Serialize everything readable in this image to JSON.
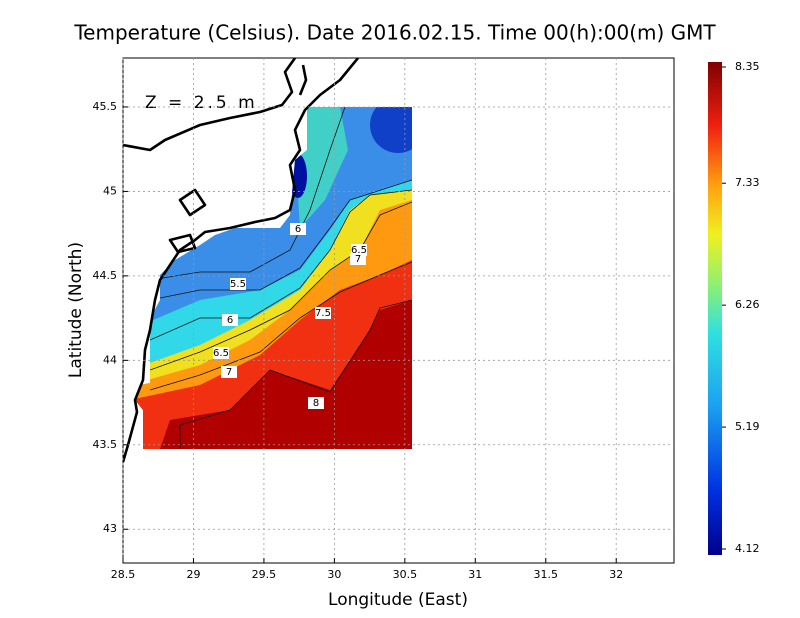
{
  "chart_data": {
    "type": "contour-map",
    "title": "Temperature (Celsius). Date 2016.02.15. Time 00(h):00(m) GMT",
    "annotation": "Z = 2.5 m",
    "xlabel": "Longitude (East)",
    "ylabel": "Latitude (North)",
    "xlim": [
      28.5,
      32.41
    ],
    "xticks": [
      28.5,
      29,
      29.5,
      30,
      30.5,
      31,
      31.5,
      32
    ],
    "ylim": [
      42.8,
      45.79
    ],
    "yticks": [
      43,
      43.5,
      44,
      44.5,
      45,
      45.5
    ],
    "grid": true,
    "colorbar": {
      "clim": [
        4.12,
        8.35
      ],
      "ticks": [
        4.12,
        5.19,
        6.26,
        7.33,
        8.35
      ]
    },
    "contour_levels": [
      6,
      6.5,
      7,
      5.5,
      7.5,
      6,
      6.5,
      7,
      8
    ]
  }
}
